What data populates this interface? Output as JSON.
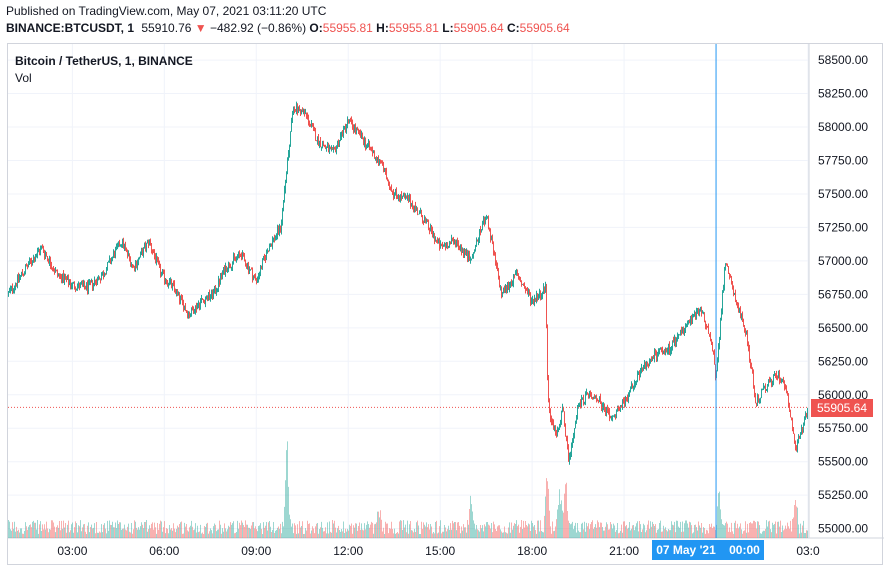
{
  "header": {
    "published": "Published on TradingView.com, May 07, 2021 03:11:20 UTC",
    "symbol": "BINANCE:BTCUSDT, 1",
    "last": "55910.76",
    "change": "−482.92 (−0.86%)",
    "open_label": "O:",
    "open_value": "55955.81",
    "high_label": "H:",
    "high_value": "55955.81",
    "low_label": "L:",
    "low_value": "55905.64",
    "close_label": "C:",
    "close_value": "55905.64"
  },
  "legend": {
    "title": "Bitcoin / TetherUS, 1, BINANCE",
    "volume": "Vol"
  },
  "crosshair": {
    "time_label": "07 May '21    00:00"
  },
  "last_price_label": "55905.64",
  "colors": {
    "up": "#26a69a",
    "down": "#ef5350",
    "crosshair": "#2196f3",
    "grid": "#f0f3fa"
  },
  "chart_data": {
    "type": "candlestick",
    "xlabel": "",
    "ylabel": "",
    "x_ticks": [
      "03:00",
      "06:00",
      "09:00",
      "12:00",
      "15:00",
      "18:00",
      "21:00",
      "03:0"
    ],
    "x_tick_hours": [
      3,
      6,
      9,
      12,
      15,
      18,
      21,
      27
    ],
    "x_range_hours": [
      0.9,
      27.0
    ],
    "y_ticks": [
      "58500.00",
      "58250.00",
      "58000.00",
      "57750.00",
      "57500.00",
      "57250.00",
      "57000.00",
      "56750.00",
      "56500.00",
      "56250.00",
      "56000.00",
      "55750.00",
      "55500.00",
      "55250.00",
      "55000.00"
    ],
    "y_tick_values": [
      58500,
      58250,
      58000,
      57750,
      57500,
      57250,
      57000,
      56750,
      56500,
      56250,
      56000,
      55750,
      55500,
      55250,
      55000
    ],
    "ylim": [
      54930,
      58620
    ],
    "last_price": 55905.64,
    "crosshair_hour": 24.0,
    "price_path": [
      [
        0.9,
        56750
      ],
      [
        1.5,
        56950
      ],
      [
        2.0,
        57100
      ],
      [
        2.5,
        56900
      ],
      [
        3.0,
        56820
      ],
      [
        3.5,
        56800
      ],
      [
        4.0,
        56900
      ],
      [
        4.6,
        57150
      ],
      [
        5.0,
        56950
      ],
      [
        5.5,
        57150
      ],
      [
        5.9,
        56900
      ],
      [
        6.3,
        56800
      ],
      [
        6.8,
        56600
      ],
      [
        7.2,
        56700
      ],
      [
        7.6,
        56750
      ],
      [
        8.0,
        56950
      ],
      [
        8.5,
        57050
      ],
      [
        9.0,
        56850
      ],
      [
        9.4,
        57100
      ],
      [
        9.8,
        57250
      ],
      [
        10.0,
        57700
      ],
      [
        10.2,
        58150
      ],
      [
        10.6,
        58100
      ],
      [
        11.0,
        57900
      ],
      [
        11.5,
        57800
      ],
      [
        12.0,
        58050
      ],
      [
        12.5,
        57900
      ],
      [
        13.0,
        57750
      ],
      [
        13.5,
        57500
      ],
      [
        14.0,
        57450
      ],
      [
        14.5,
        57300
      ],
      [
        15.0,
        57100
      ],
      [
        15.5,
        57150
      ],
      [
        16.0,
        57000
      ],
      [
        16.5,
        57350
      ],
      [
        17.0,
        56750
      ],
      [
        17.5,
        56900
      ],
      [
        18.0,
        56700
      ],
      [
        18.45,
        56800
      ],
      [
        18.5,
        56100
      ],
      [
        18.6,
        55800
      ],
      [
        18.8,
        55700
      ],
      [
        19.0,
        55900
      ],
      [
        19.2,
        55500
      ],
      [
        19.5,
        55900
      ],
      [
        19.8,
        56000
      ],
      [
        20.2,
        55950
      ],
      [
        20.6,
        55800
      ],
      [
        21.0,
        55950
      ],
      [
        21.5,
        56150
      ],
      [
        22.0,
        56300
      ],
      [
        22.5,
        56350
      ],
      [
        23.0,
        56500
      ],
      [
        23.5,
        56650
      ],
      [
        23.9,
        56350
      ],
      [
        24.0,
        56100
      ],
      [
        24.3,
        57000
      ],
      [
        24.7,
        56650
      ],
      [
        25.0,
        56450
      ],
      [
        25.3,
        55950
      ],
      [
        25.6,
        56050
      ],
      [
        26.0,
        56150
      ],
      [
        26.3,
        56050
      ],
      [
        26.6,
        55600
      ],
      [
        26.9,
        55800
      ],
      [
        27.0,
        55906
      ]
    ],
    "volume_spikes": [
      [
        10.0,
        0.9
      ],
      [
        18.5,
        0.55
      ],
      [
        18.9,
        0.45
      ],
      [
        19.1,
        0.5
      ],
      [
        24.1,
        0.35
      ],
      [
        26.6,
        0.3
      ],
      [
        13.0,
        0.25
      ],
      [
        16.0,
        0.3
      ]
    ]
  }
}
